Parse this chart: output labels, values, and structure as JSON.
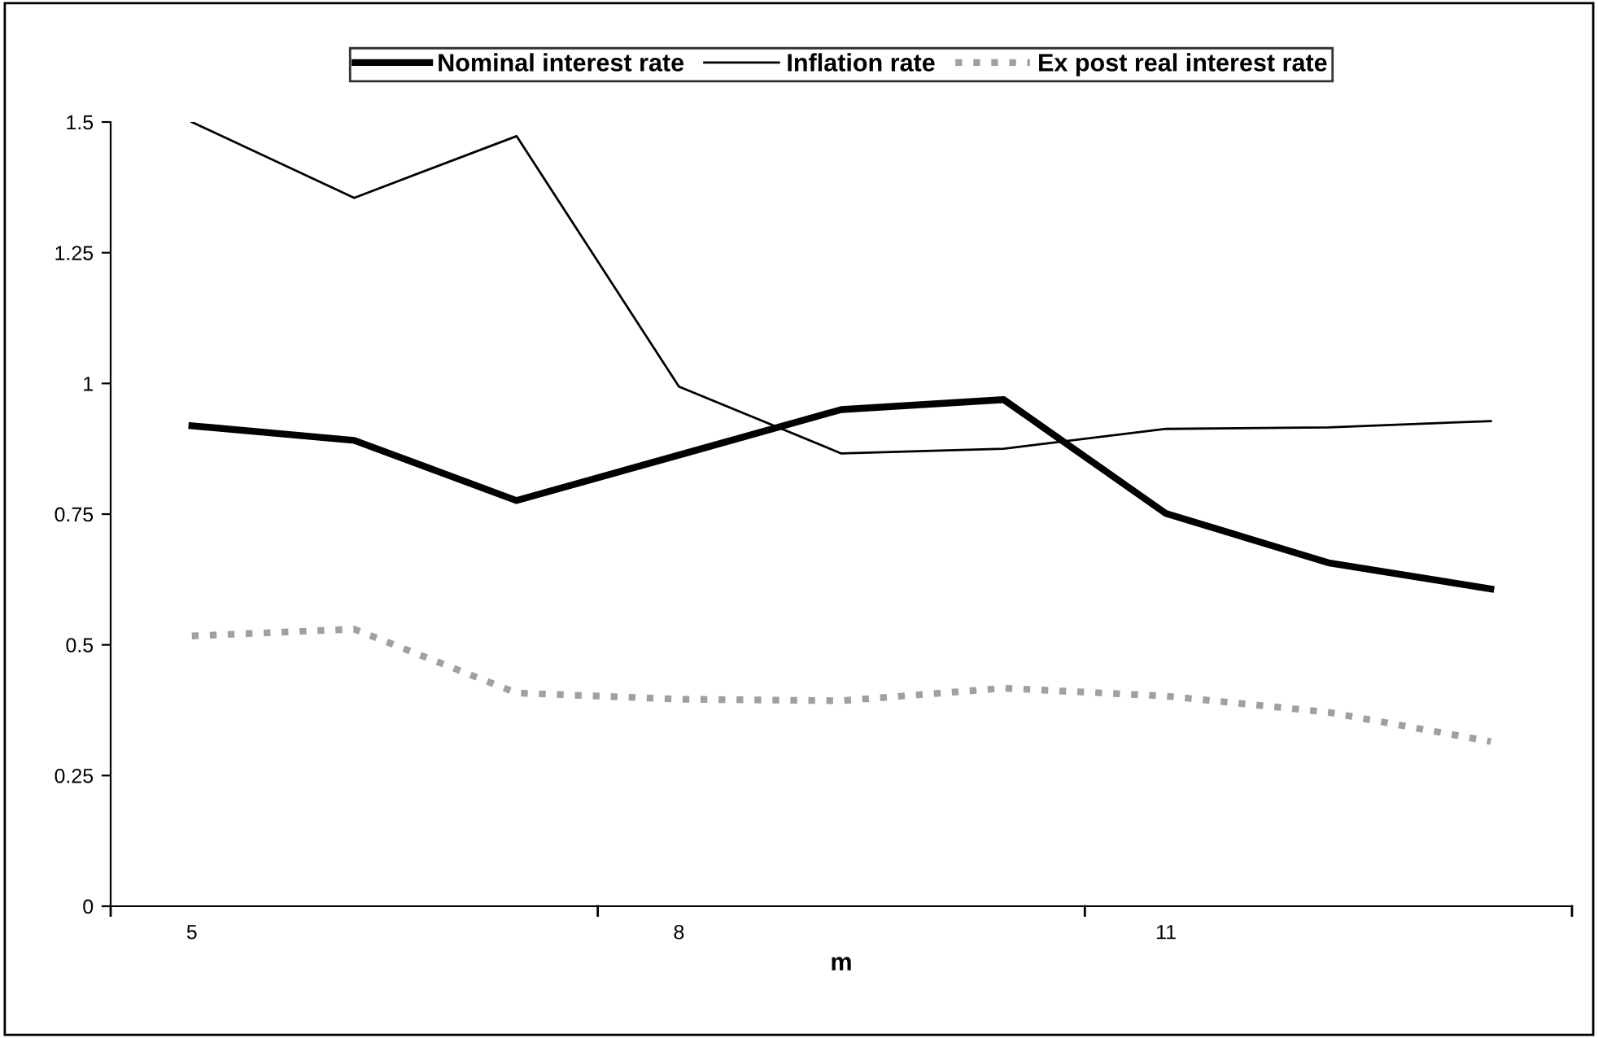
{
  "chart_data": {
    "type": "line",
    "xlabel": "m",
    "categories": [
      "5",
      null,
      null,
      "8",
      null,
      null,
      "11",
      null,
      null
    ],
    "series": [
      {
        "name": "Nominal interest rate",
        "color": "#000000",
        "values": [
          0.919,
          0.891,
          0.776,
          0.863,
          0.95,
          0.969,
          0.751,
          0.657,
          0.607
        ]
      },
      {
        "name": "Inflation rate",
        "color": "#000000",
        "values": [
          1.5,
          1.355,
          1.473,
          0.994,
          0.866,
          0.875,
          0.913,
          0.916,
          0.928
        ]
      },
      {
        "name": "Ex post real interest rate",
        "color": "#a0a0a0",
        "line_style": "dotted",
        "values": [
          0.517,
          0.53,
          0.408,
          0.396,
          0.393,
          0.417,
          0.402,
          0.371,
          0.315
        ]
      }
    ],
    "ylim": [
      0,
      1.5
    ],
    "yticks": [
      0,
      0.25,
      0.5,
      0.75,
      1,
      1.25,
      1.5
    ],
    "grid": false,
    "legend": "top",
    "marker": "none"
  }
}
